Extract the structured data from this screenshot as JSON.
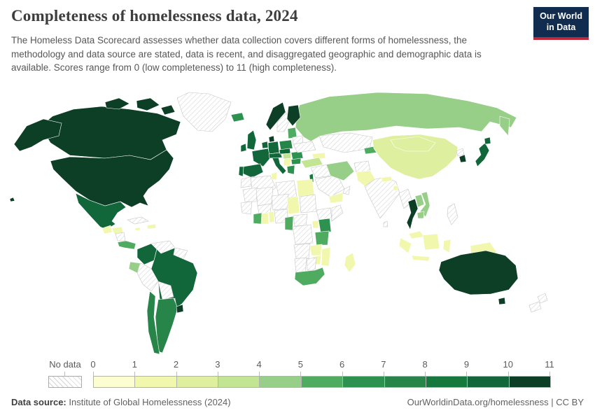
{
  "header": {
    "title": "Completeness of homelessness data, 2024",
    "subtitle": "The Homeless Data Scorecard assesses whether data collection covers different forms of homelessness, the methodology and data source are stated, data is recent, and disaggregated geographic and demographic data is available. Scores range from 0 (low completeness) to 11 (high completeness).",
    "logo": {
      "line1": "Our World",
      "line2": "in Data",
      "bg_color": "#102d4f",
      "accent_color": "#c0273c"
    }
  },
  "legend": {
    "no_data_label": "No data",
    "ticks": [
      "0",
      "1",
      "2",
      "3",
      "4",
      "5",
      "6",
      "7",
      "8",
      "9",
      "10",
      "11"
    ]
  },
  "footer": {
    "source_label": "Data source:",
    "source_value": " Institute of Global Homelessness (2024)",
    "rights": "OurWorldinData.org/homelessness | CC BY"
  },
  "chart_data": {
    "type": "choropleth",
    "title": "Completeness of homelessness data, 2024",
    "year": "2024",
    "value_range": [
      0,
      11
    ],
    "no_data": {
      "fill": "#ffffff",
      "hatch": "#d6d6d6",
      "border": "#c6c6c6"
    },
    "palette": [
      "#fcfdd1",
      "#f1f8ad",
      "#def0a0",
      "#c2e594",
      "#97cf88",
      "#4eab60",
      "#2d9150",
      "#27854a",
      "#15793d",
      "#11663a",
      "#0c3f25"
    ],
    "countries": {
      "canada": 10,
      "united-states": 10,
      "alaska": 10,
      "hawaii": 10,
      "greenland": null,
      "mexico": 9,
      "guatemala": 1,
      "honduras": 1,
      "nicaragua": null,
      "costa-rica-panama": 5,
      "cuba": null,
      "jamaica": 1,
      "hispaniola": 1,
      "colombia": 9,
      "venezuela": null,
      "guyanas": null,
      "ecuador": 4,
      "peru": null,
      "brazil": 9,
      "bolivia": null,
      "paraguay": null,
      "chile": 7,
      "argentina": 7,
      "uruguay": 10,
      "iceland": 6,
      "ireland": 9,
      "united-kingdom": 9,
      "portugal": 9,
      "spain": 9,
      "france": 9,
      "netherlands-belgium": 9,
      "germany": 9,
      "denmark": 10,
      "norway": 10,
      "sweden": null,
      "finland": 10,
      "switzerland-austria": 9,
      "italy": 9,
      "czechia-slovakia": 9,
      "poland": 7,
      "hungary": 3,
      "romania": 6,
      "bulgaria": 6,
      "serbia-balkans": 1,
      "greece": 6,
      "baltics": 5,
      "belarus": null,
      "ukraine": null,
      "turkey": 3,
      "caucasus": 1,
      "russia": 4,
      "kazakhstan-central-asia": null,
      "kyrgyzstan-tajikistan": 5,
      "mongolia": 2,
      "china": 2,
      "north-korea": null,
      "south-korea": 10,
      "japan": 9,
      "afghanistan": null,
      "pakistan": 1,
      "india": null,
      "nepal": 1,
      "bangladesh": 1,
      "sri-lanka": null,
      "iran": 4,
      "iraq-syria": null,
      "israel": 8,
      "saudi-arabia": null,
      "yemen": 1,
      "oman": null,
      "morocco": null,
      "algeria": null,
      "tunisia": 1,
      "libya": null,
      "egypt": 1,
      "mauritania": null,
      "mali": null,
      "niger": null,
      "chad": 1,
      "sudan": null,
      "senegal-guinea": null,
      "burkina-faso": null,
      "ivory-coast": 5,
      "ghana": 1,
      "benin-togo": 1,
      "nigeria": null,
      "cameroon": 5,
      "central-african-republic": null,
      "ethiopia": null,
      "somalia": null,
      "drc": null,
      "uganda": 1,
      "kenya": 6,
      "tanzania": 5,
      "angola": null,
      "zambia": 1,
      "mozambique": 1,
      "zimbabwe": 1,
      "namibia": null,
      "botswana": null,
      "south-africa": 5,
      "madagascar": 1,
      "myanmar": null,
      "thailand": 10,
      "laos": 4,
      "vietnam": 4,
      "cambodia": 4,
      "malaysia": 1,
      "sumatra": 1,
      "java": 1,
      "borneo": 1,
      "sulawesi": 1,
      "new-guinea": 1,
      "philippines": null,
      "australia": 10,
      "tasmania": 10,
      "new-zealand-north": null,
      "new-zealand-south": null
    }
  }
}
